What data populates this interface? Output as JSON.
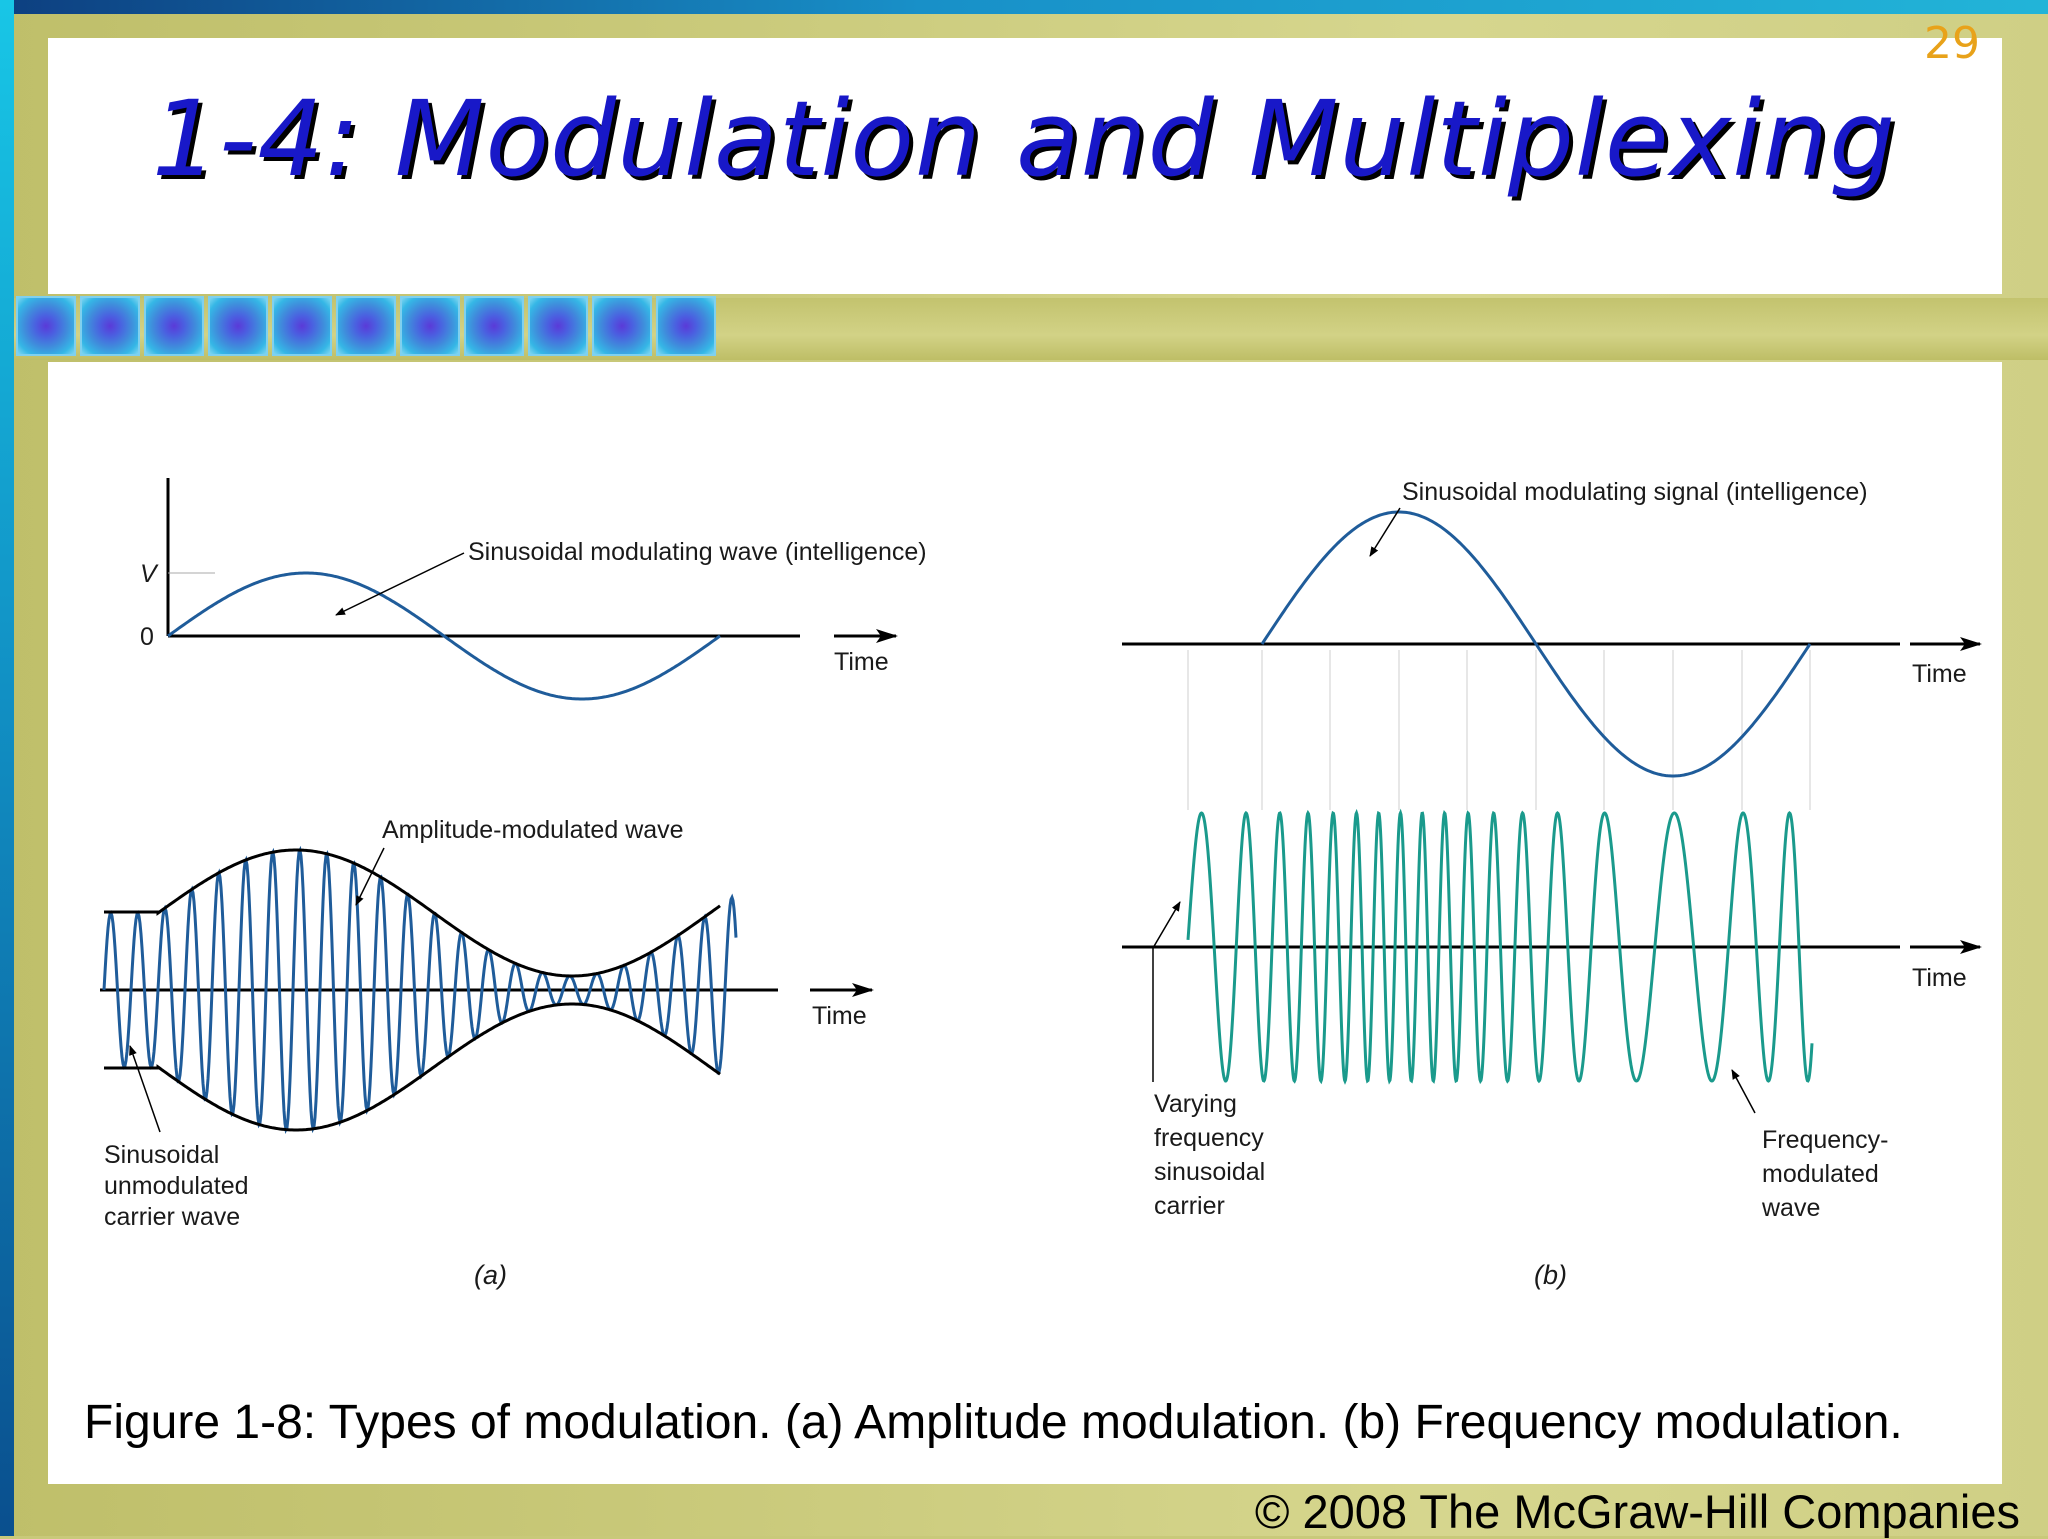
{
  "slide": {
    "number": "29",
    "title": "1-4: Modulation and Multiplexing",
    "caption": "Figure 1-8: Types of modulation. (a) Amplitude modulation. (b) Frequency modulation.",
    "copyright": "© 2008 The McGraw-Hill Companies"
  },
  "figure_a": {
    "sublabel": "(a)",
    "axis_v": "V",
    "axis_zero": "0",
    "time_top": "Time",
    "time_bottom": "Time",
    "wave_label": "Sinusoidal modulating wave (intelligence)",
    "am_label": "Amplitude-modulated wave",
    "carrier_label": [
      "Sinusoidal",
      "unmodulated",
      "carrier wave"
    ]
  },
  "figure_b": {
    "sublabel": "(b)",
    "signal_label": "Sinusoidal modulating signal (intelligence)",
    "time_top": "Time",
    "time_bottom": "Time",
    "carrier_label": [
      "Varying",
      "frequency",
      "sinusoidal",
      "carrier"
    ],
    "fm_label": [
      "Frequency-",
      "modulated",
      "wave"
    ]
  },
  "colors": {
    "wave_blue": "#1f5c9a",
    "fm_teal": "#1a9a8c",
    "title_blue": "#1818c8",
    "slide_number": "#e8a21a"
  }
}
